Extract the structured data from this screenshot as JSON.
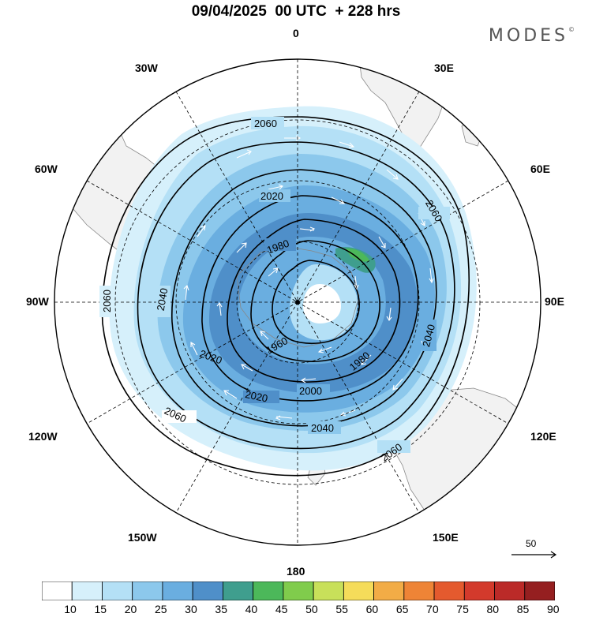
{
  "title": "09/04/2025  00 UTC  + 228 hrs",
  "logo": {
    "text": "MODES",
    "mark": "©"
  },
  "longitude_labels": {
    "top": "0",
    "bottom": "180",
    "left": "90W",
    "right": "90E",
    "upper_left_1": "30W",
    "upper_left_2": "60W",
    "upper_right_1": "30E",
    "upper_right_2": "60E",
    "lower_left_1": "120W",
    "lower_left_2": "150W",
    "lower_right_1": "120E",
    "lower_right_2": "150E"
  },
  "contours": {
    "units_hidden": true,
    "labels": [
      "2060",
      "2020",
      "1980",
      "2060",
      "2060",
      "2040",
      "2040",
      "1960",
      "1980",
      "2020",
      "2020",
      "2000",
      "2040",
      "2060",
      "2060"
    ]
  },
  "reference_vector": {
    "value": "50"
  },
  "colorbar": {
    "labels": [
      "10",
      "15",
      "20",
      "25",
      "30",
      "35",
      "40",
      "45",
      "50",
      "55",
      "60",
      "65",
      "70",
      "75",
      "80",
      "85",
      "90"
    ],
    "colors": [
      "#ffffff",
      "#d6f0fb",
      "#b4e0f6",
      "#8cc8ec",
      "#6aaee0",
      "#4f8fc9",
      "#3f9e8e",
      "#4cb85a",
      "#80cc4c",
      "#c8e05a",
      "#f5dc5a",
      "#f2ac46",
      "#ee8436",
      "#e45a2e",
      "#d33a2c",
      "#bb2a28",
      "#951f20"
    ]
  },
  "colors": {
    "land": "#f2f2f2",
    "coast": "#888888",
    "contour": "#000000",
    "vector": "#ffffff"
  }
}
